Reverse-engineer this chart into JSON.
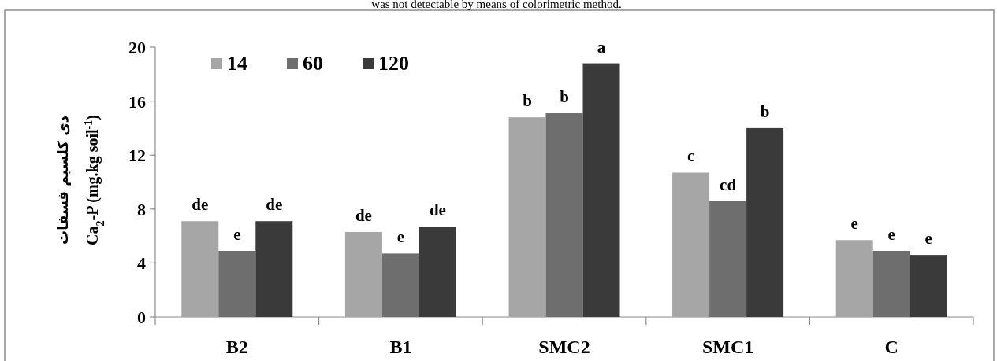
{
  "chart_data": {
    "type": "bar",
    "ylabel": "Ca$_{2}$-P (mg.kg soil$^{-1}$)",
    "annotations": [
      "was not detectable by means of colorimetric method.",
      "دی کلسیم فسفات"
    ],
    "categories": [
      "B2",
      "B1",
      "SMC2",
      "SMC1",
      "C"
    ],
    "series": [
      {
        "name": "14",
        "color": "#a6a6a6",
        "values": [
          7.1,
          6.3,
          14.8,
          10.7,
          5.7
        ],
        "value_labels": [
          "de",
          "de",
          "b",
          "c",
          "e"
        ]
      },
      {
        "name": "60",
        "color": "#6e6e6e",
        "values": [
          4.9,
          4.7,
          15.1,
          8.6,
          4.9
        ],
        "value_labels": [
          "e",
          "e",
          "b",
          "cd",
          "e"
        ]
      },
      {
        "name": "120",
        "color": "#3a3a3a",
        "values": [
          7.1,
          6.7,
          18.8,
          14.0,
          4.6
        ],
        "value_labels": [
          "de",
          "de",
          "a",
          "b",
          "e"
        ]
      }
    ],
    "ylim": [
      0,
      20
    ],
    "yticks": [
      0,
      4,
      8,
      12,
      16,
      20
    ],
    "grid": false,
    "legend": "top left"
  }
}
